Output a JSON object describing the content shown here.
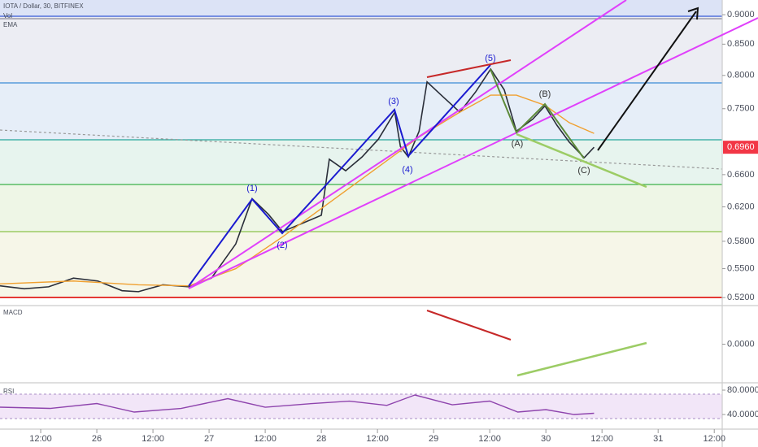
{
  "chart_data": [
    {
      "type": "line",
      "log_scale": true,
      "series": [
        {
          "name": "IOTA / Dollar, 30, BITFINEX",
          "color": "#2a2e39",
          "x": [
            -8.7,
            -3.5,
            1.7,
            7.0,
            12.2,
            17.4,
            20.9,
            26.1,
            31.7,
            36.5,
            41.7,
            45.2,
            48.7,
            51.7,
            55.7,
            60.0,
            61.7,
            65.2,
            68.7,
            72.2,
            75.7,
            76.9,
            78.6,
            80.9,
            82.6,
            86.1,
            89.6,
            93.0,
            96.2,
            99.1,
            101.7,
            105.2,
            107.8,
            110.4,
            113.0,
            116.2,
            118.3
          ],
          "values": [
            0.532,
            0.529,
            0.531,
            0.54,
            0.537,
            0.527,
            0.526,
            0.533,
            0.531,
            0.54,
            0.577,
            0.63,
            0.611,
            0.591,
            0.6,
            0.61,
            0.68,
            0.665,
            0.683,
            0.707,
            0.745,
            0.697,
            0.683,
            0.718,
            0.79,
            0.767,
            0.745,
            0.775,
            0.81,
            0.778,
            0.718,
            0.735,
            0.754,
            0.726,
            0.703,
            0.682,
            0.696
          ]
        },
        {
          "name": "EMA",
          "color": "#f0a030",
          "x": [
            -8.7,
            7.0,
            20.9,
            31.7,
            41.7,
            51.7,
            61.7,
            72.2,
            80.9,
            89.6,
            96.2,
            101.7,
            107.8,
            113.0,
            118.3
          ],
          "values": [
            0.534,
            0.537,
            0.533,
            0.532,
            0.55,
            0.585,
            0.625,
            0.67,
            0.71,
            0.745,
            0.77,
            0.77,
            0.755,
            0.73,
            0.715
          ]
        }
      ],
      "legend_extra": "Vol",
      "last_price": {
        "value": 0.696,
        "label": "0.6960"
      },
      "annotations": [
        "(1)",
        "(2)",
        "(3)",
        "(4)",
        "(5)",
        "(A)",
        "(B)",
        "(C)"
      ],
      "xlim": [
        -8.7,
        145.7
      ],
      "xticks": [
        {
          "value": 0,
          "label": "12:00"
        },
        {
          "value": 12,
          "label": "26"
        },
        {
          "value": 24,
          "label": "12:00"
        },
        {
          "value": 36,
          "label": "27"
        },
        {
          "value": 48,
          "label": "12:00"
        },
        {
          "value": 60,
          "label": "28"
        },
        {
          "value": 72,
          "label": "12:00"
        },
        {
          "value": 84,
          "label": "29"
        },
        {
          "value": 96,
          "label": "12:00"
        },
        {
          "value": 108,
          "label": "30"
        },
        {
          "value": 120,
          "label": "12:00"
        },
        {
          "value": 132,
          "label": "31"
        },
        {
          "value": 144,
          "label": "12:00"
        }
      ],
      "ylim": [
        0.5128,
        0.926
      ],
      "yticks": [
        {
          "value": 0.9,
          "label": "0.9000"
        },
        {
          "value": 0.85,
          "label": "0.8500"
        },
        {
          "value": 0.8,
          "label": "0.8000"
        },
        {
          "value": 0.75,
          "label": "0.7500"
        },
        {
          "value": 0.66,
          "label": "0.6600"
        },
        {
          "value": 0.62,
          "label": "0.6200"
        },
        {
          "value": 0.58,
          "label": "0.5800"
        },
        {
          "value": 0.55,
          "label": "0.5500"
        },
        {
          "value": 0.52,
          "label": "0.5200"
        }
      ]
    },
    {
      "type": "macd",
      "title": "MACD",
      "ylim": [
        -1,
        1
      ],
      "yticks": [
        {
          "value": 0,
          "label": "0.0000"
        }
      ]
    },
    {
      "type": "line",
      "title": "RSI",
      "series": [
        {
          "color": "#8e44ad",
          "x": [
            -8.7,
            2,
            12,
            20,
            30,
            40,
            48,
            58,
            66,
            74,
            80,
            88,
            96,
            102,
            108,
            114,
            118.3
          ],
          "values": [
            52,
            50,
            58,
            44,
            50,
            66,
            52,
            58,
            62,
            55,
            72,
            56,
            62,
            44,
            48,
            40,
            42
          ]
        }
      ],
      "ylim": [
        16,
        90.7
      ],
      "yticks": [
        {
          "value": 80,
          "label": "80.0000"
        },
        {
          "value": 40,
          "label": "40.0000"
        }
      ]
    }
  ]
}
